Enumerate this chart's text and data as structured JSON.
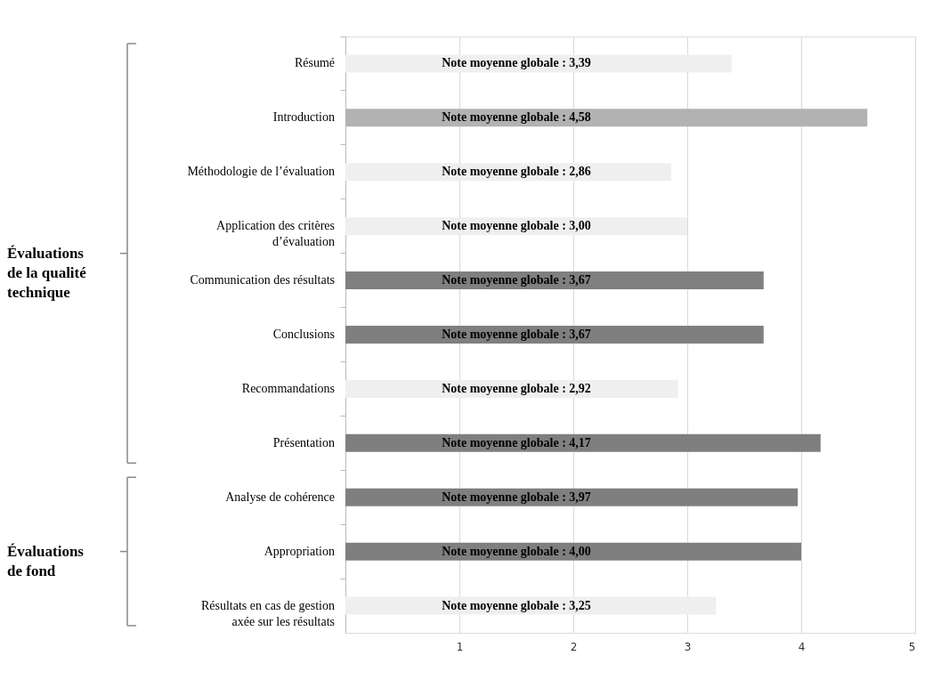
{
  "chart_data": {
    "type": "bar",
    "orientation": "horizontal",
    "categories": [
      "Résumé",
      "Introduction",
      "Méthodologie de l’évaluation",
      "Application des critères d’évaluation",
      "Communication des résultats",
      "Conclusions",
      "Recommandations",
      "Présentation",
      "Analyse de cohérence",
      "Appropriation",
      "Résultats en cas de gestion axée sur les résultats"
    ],
    "values": [
      3.39,
      4.58,
      2.86,
      3.0,
      3.67,
      3.67,
      2.92,
      4.17,
      3.97,
      4.0,
      3.25
    ],
    "colors": [
      "#efefef",
      "#b2b2b2",
      "#efefef",
      "#efefef",
      "#7f7f7f",
      "#7f7f7f",
      "#efefef",
      "#7f7f7f",
      "#7f7f7f",
      "#7f7f7f",
      "#efefef"
    ],
    "value_labels": [
      "Note moyenne globale : 3,39",
      "Note moyenne globale : 4,58",
      "Note moyenne globale : 2,86",
      "Note moyenne globale : 3,00",
      "Note moyenne globale : 3,67",
      "Note moyenne globale : 3,67",
      "Note moyenne globale : 2,92",
      "Note moyenne globale : 4,17",
      "Note moyenne globale : 3,97",
      "Note moyenne globale : 4,00",
      "Note moyenne globale : 3,25"
    ],
    "xlim": [
      0,
      5
    ],
    "xticks": [
      1,
      2,
      3,
      4,
      5
    ],
    "grid": "x",
    "annotations": [
      "Évaluations de la qualité technique",
      "Évaluations de fond"
    ]
  }
}
